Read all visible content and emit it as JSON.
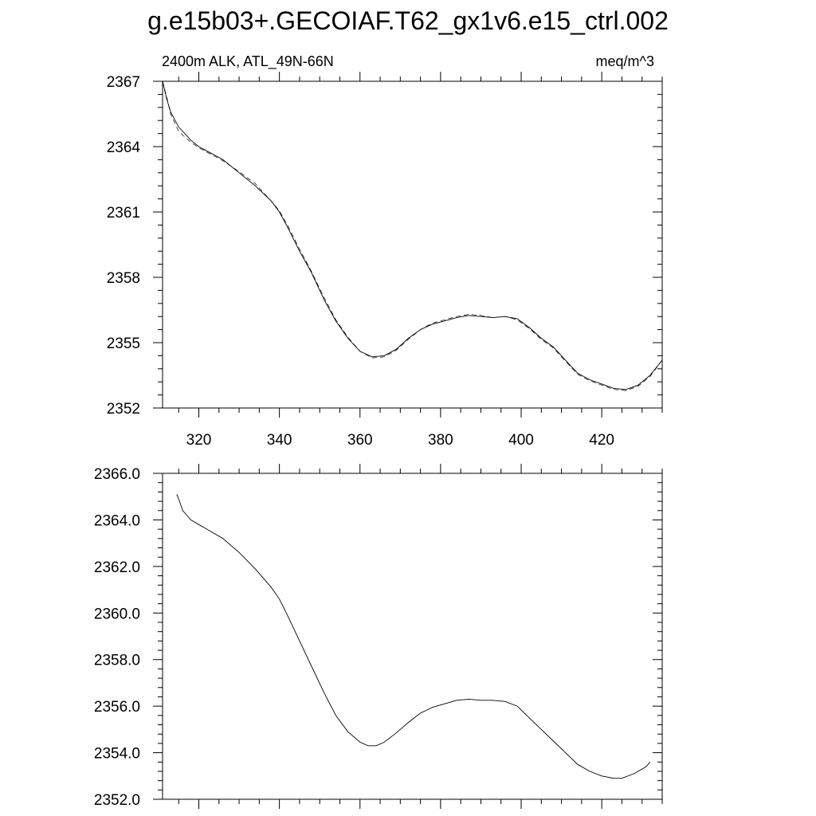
{
  "title": "g.e15b03+.GECOIAF.T62_gx1v6.e15_ctrl.002",
  "chart_data": [
    {
      "type": "line",
      "left_label": "2400m ALK, ATL_49N-66N",
      "right_label": "meq/m^3",
      "xlim": [
        311,
        435
      ],
      "ylim": [
        2352,
        2367
      ],
      "xticks": [
        320,
        340,
        360,
        380,
        400,
        420
      ],
      "xtick_labels": [
        "320",
        "340",
        "360",
        "380",
        "400",
        "420"
      ],
      "yticks": [
        2352,
        2355,
        2358,
        2361,
        2364,
        2367
      ],
      "ytick_labels": [
        "2352",
        "2355",
        "2358",
        "2361",
        "2364",
        "2367"
      ],
      "series": [
        {
          "style": "solid",
          "x": [
            311,
            312,
            313,
            315,
            318,
            320,
            323,
            326,
            330,
            334,
            338,
            340,
            342,
            345,
            348,
            351,
            354,
            357,
            360,
            363,
            366,
            369,
            372,
            375,
            378,
            381,
            384,
            387,
            390,
            393,
            396,
            399,
            402,
            405,
            408,
            411,
            414,
            417,
            420,
            423,
            426,
            429,
            432,
            435
          ],
          "y": [
            2367.0,
            2366.2,
            2365.6,
            2364.9,
            2364.3,
            2364.0,
            2363.7,
            2363.4,
            2362.8,
            2362.2,
            2361.5,
            2361.0,
            2360.3,
            2359.2,
            2358.2,
            2357.0,
            2356.0,
            2355.2,
            2354.6,
            2354.35,
            2354.4,
            2354.7,
            2355.2,
            2355.6,
            2355.85,
            2356.0,
            2356.15,
            2356.25,
            2356.2,
            2356.15,
            2356.2,
            2356.1,
            2355.7,
            2355.2,
            2354.8,
            2354.2,
            2353.6,
            2353.3,
            2353.1,
            2352.9,
            2352.85,
            2353.05,
            2353.5,
            2354.2
          ]
        },
        {
          "style": "dashed",
          "x": [
            311,
            312,
            313,
            315,
            318,
            320,
            323,
            326,
            330,
            334,
            338,
            340,
            342,
            345,
            348,
            351,
            354,
            357,
            360,
            363,
            366,
            369,
            372,
            375,
            378,
            381,
            384,
            387,
            390,
            393,
            396,
            399,
            402,
            405,
            408,
            411,
            414,
            417,
            420,
            423,
            426,
            429,
            432,
            435
          ],
          "y": [
            2367.0,
            2366.3,
            2365.5,
            2364.7,
            2364.2,
            2363.95,
            2363.65,
            2363.35,
            2362.85,
            2362.3,
            2361.5,
            2361.05,
            2360.4,
            2359.3,
            2358.25,
            2357.1,
            2356.05,
            2355.25,
            2354.6,
            2354.3,
            2354.35,
            2354.65,
            2355.15,
            2355.6,
            2355.9,
            2356.05,
            2356.2,
            2356.3,
            2356.25,
            2356.15,
            2356.2,
            2356.05,
            2355.65,
            2355.15,
            2354.75,
            2354.15,
            2353.55,
            2353.25,
            2353.05,
            2352.85,
            2352.8,
            2353.0,
            2353.45,
            2354.2
          ]
        }
      ]
    },
    {
      "type": "line",
      "xlim": [
        311,
        435
      ],
      "ylim": [
        2352.0,
        2366.0
      ],
      "xticks": [
        320,
        340,
        360,
        380,
        400,
        420
      ],
      "yticks": [
        2352.0,
        2354.0,
        2356.0,
        2358.0,
        2360.0,
        2362.0,
        2364.0,
        2366.0
      ],
      "ytick_labels": [
        "2352.0",
        "2354.0",
        "2356.0",
        "2358.0",
        "2360.0",
        "2362.0",
        "2364.0",
        "2366.0"
      ],
      "series": [
        {
          "style": "solid",
          "x": [
            314.5,
            315,
            316,
            318,
            320,
            323,
            326,
            330,
            334,
            338,
            340,
            342,
            345,
            348,
            351,
            354,
            357,
            360,
            362,
            364,
            366,
            369,
            372,
            375,
            378,
            381,
            384,
            387,
            390,
            393,
            396,
            399,
            402,
            405,
            408,
            411,
            414,
            417,
            420,
            423,
            425,
            428,
            431,
            432
          ],
          "y": [
            2365.1,
            2364.9,
            2364.4,
            2364.0,
            2363.8,
            2363.5,
            2363.2,
            2362.6,
            2361.9,
            2361.1,
            2360.6,
            2359.9,
            2358.8,
            2357.7,
            2356.6,
            2355.6,
            2354.9,
            2354.45,
            2354.3,
            2354.3,
            2354.45,
            2354.85,
            2355.3,
            2355.7,
            2355.95,
            2356.1,
            2356.25,
            2356.3,
            2356.25,
            2356.25,
            2356.2,
            2356.0,
            2355.5,
            2355.0,
            2354.5,
            2354.0,
            2353.5,
            2353.2,
            2353.0,
            2352.9,
            2352.9,
            2353.1,
            2353.4,
            2353.6
          ]
        }
      ]
    }
  ]
}
